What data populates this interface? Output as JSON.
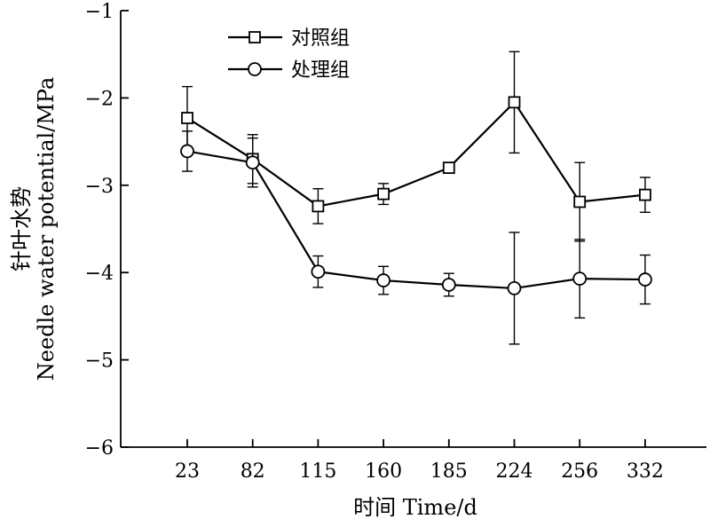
{
  "chart_data": {
    "type": "line",
    "categories": [
      "23",
      "82",
      "115",
      "160",
      "185",
      "224",
      "256",
      "332"
    ],
    "ylim": [
      -6,
      -1
    ],
    "yticks": [
      -1,
      -2,
      -3,
      -4,
      -5,
      -6
    ],
    "ytick_labels": [
      "−1",
      "−2",
      "−3",
      "−4",
      "−5",
      "−6"
    ],
    "xlabel": "时间 Time/d",
    "ylabel_cn": "针叶水势",
    "ylabel_en": "Needle water potential/MPa",
    "grid": false,
    "legend_position": "top-left",
    "series": [
      {
        "name": "对照组",
        "marker": "square",
        "values": [
          -2.23,
          -2.7,
          -3.24,
          -3.1,
          -2.8,
          -2.05,
          -3.19,
          -3.11
        ],
        "errors": [
          0.36,
          0.28,
          0.2,
          0.12,
          0.02,
          0.58,
          0.45,
          0.2
        ]
      },
      {
        "name": "处理组",
        "marker": "circle",
        "values": [
          -2.61,
          -2.74,
          -3.99,
          -4.09,
          -4.14,
          -4.18,
          -4.07,
          -4.08
        ],
        "errors": [
          0.23,
          0.28,
          0.18,
          0.16,
          0.13,
          0.64,
          0.45,
          0.28
        ]
      }
    ]
  }
}
